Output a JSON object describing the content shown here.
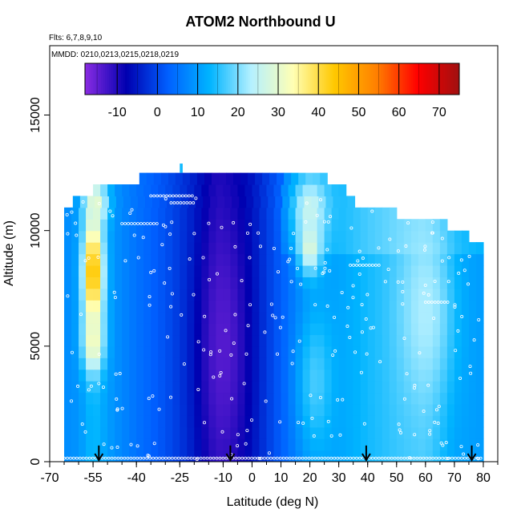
{
  "chart_data": {
    "type": "heatmap",
    "title": "ATOM2 Northbound U",
    "flights_label": "Flts: 6,7,8,9,10",
    "mmdd_label": "MMDD: 0210,0213,0215,0218,0219",
    "xlabel": "Latitude (deg N)",
    "ylabel": "Altitude (m)",
    "xlim": [
      -70,
      85
    ],
    "ylim": [
      0,
      18000
    ],
    "x_ticks": [
      -70,
      -55,
      -40,
      -25,
      -10,
      0,
      10,
      20,
      30,
      40,
      50,
      60,
      70,
      80
    ],
    "y_ticks": [
      0,
      5000,
      10000,
      15000
    ],
    "colorbar": {
      "range": [
        -18,
        75
      ],
      "ticks": [
        -10,
        0,
        10,
        20,
        30,
        40,
        50,
        60,
        70
      ],
      "colors": [
        "#8a2be2",
        "#0000b0",
        "#0060ff",
        "#00b4ff",
        "#b4f0ff",
        "#ffffb4",
        "#ffc800",
        "#ff8000",
        "#ff0000",
        "#a01010"
      ]
    },
    "grid": false,
    "altitude_levels_m": [
      250,
      750,
      1250,
      1750,
      2250,
      2750,
      3250,
      3750,
      4250,
      4750,
      5250,
      5750,
      6250,
      6750,
      7250,
      7750,
      8250,
      8750,
      9250,
      9750,
      10250,
      10750,
      11250,
      11750,
      12250
    ],
    "extent_by_level": [
      [
        -65,
        80
      ],
      [
        -65,
        80
      ],
      [
        -65,
        80
      ],
      [
        -65,
        80
      ],
      [
        -65,
        80
      ],
      [
        -65,
        80
      ],
      [
        -65,
        80
      ],
      [
        -65,
        80
      ],
      [
        -65,
        80
      ],
      [
        -65,
        80
      ],
      [
        -65,
        80
      ],
      [
        -65,
        80
      ],
      [
        -65,
        80
      ],
      [
        -65,
        80
      ],
      [
        -65,
        80
      ],
      [
        -65,
        80
      ],
      [
        -65,
        80
      ],
      [
        -65,
        80
      ],
      [
        -65,
        78
      ],
      [
        -65,
        75
      ],
      [
        -65,
        66
      ],
      [
        -65,
        48
      ],
      [
        -62,
        34
      ],
      [
        -55,
        32
      ],
      [
        -39,
        24
      ]
    ],
    "background_u": [
      {
        "lat": -66,
        "u": 8
      },
      {
        "lat": -60,
        "u": 9
      },
      {
        "lat": -55,
        "u": 14
      },
      {
        "lat": -48,
        "u": 9
      },
      {
        "lat": -40,
        "u": 5
      },
      {
        "lat": -30,
        "u": 1
      },
      {
        "lat": -20,
        "u": -4
      },
      {
        "lat": -12,
        "u": -9
      },
      {
        "lat": -5,
        "u": -7
      },
      {
        "lat": 0,
        "u": -5
      },
      {
        "lat": 8,
        "u": 1
      },
      {
        "lat": 15,
        "u": 6
      },
      {
        "lat": 20,
        "u": 9
      },
      {
        "lat": 30,
        "u": 11
      },
      {
        "lat": 40,
        "u": 14
      },
      {
        "lat": 50,
        "u": 16
      },
      {
        "lat": 60,
        "u": 17
      },
      {
        "lat": 70,
        "u": 11
      },
      {
        "lat": 80,
        "u": 10
      }
    ],
    "features": [
      {
        "lat": -55,
        "alt": 8200,
        "lat_width": 3.5,
        "alt_width": 2500,
        "u": 47
      },
      {
        "lat": -55,
        "alt": 5200,
        "lat_width": 3.5,
        "alt_width": 1300,
        "u": 33
      },
      {
        "lat": -54,
        "alt": 11200,
        "lat_width": 4,
        "alt_width": 900,
        "u": 30
      },
      {
        "lat": 20,
        "alt": 9300,
        "lat_width": 4,
        "alt_width": 1200,
        "u": 30
      },
      {
        "lat": 20,
        "alt": 11000,
        "lat_width": 6,
        "alt_width": 1400,
        "u": 26
      },
      {
        "lat": 60,
        "alt": 6500,
        "lat_width": 9,
        "alt_width": 4000,
        "u": 23
      },
      {
        "lat": 22,
        "alt": 3500,
        "lat_width": 6,
        "alt_width": 3000,
        "u": 17
      },
      {
        "lat": -10,
        "alt": 5000,
        "lat_width": 8,
        "alt_width": 6000,
        "u": -14
      }
    ],
    "flight_track_levels_m": [
      10300,
      11500,
      11200,
      8500,
      6900,
      400,
      150
    ],
    "arrows_lat": [
      -53,
      -7.5,
      39.5,
      76
    ]
  }
}
